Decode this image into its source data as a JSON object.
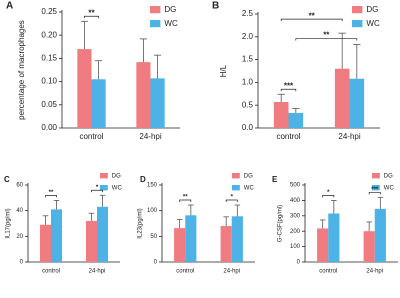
{
  "chart_data": [
    {
      "type": "bar",
      "label": "A",
      "y_label": "percentage of macrophages",
      "categories": [
        "control",
        "24-hpi"
      ],
      "series": [
        {
          "name": "DG",
          "color": "#f07c82",
          "values": [
            0.17,
            0.142
          ],
          "errors": [
            0.06,
            0.05
          ]
        },
        {
          "name": "WC",
          "color": "#4db3e6",
          "values": [
            0.105,
            0.107
          ],
          "errors": [
            0.04,
            0.05
          ]
        }
      ],
      "ylim": [
        0,
        0.25
      ],
      "yticks": [
        {
          "value": 0,
          "label": "0.00"
        },
        {
          "value": 0.05,
          "label": "0.05"
        },
        {
          "value": 0.1,
          "label": "0.10"
        },
        {
          "value": 0.15,
          "label": "0.15"
        },
        {
          "value": 0.2,
          "label": "0.20"
        },
        {
          "value": 0.25,
          "label": "0.25"
        }
      ],
      "annotations": [
        {
          "text": "**",
          "category": 0
        }
      ]
    },
    {
      "type": "bar",
      "label": "B",
      "y_label": "H/L",
      "categories": [
        "control",
        "24-hpi"
      ],
      "series": [
        {
          "name": "DG",
          "color": "#f07c82",
          "values": [
            0.57,
            1.3
          ],
          "errors": [
            0.17,
            0.78
          ]
        },
        {
          "name": "WC",
          "color": "#4db3e6",
          "values": [
            0.33,
            1.08
          ],
          "errors": [
            0.1,
            0.75
          ]
        }
      ],
      "ylim": [
        0,
        2.5
      ],
      "yticks": [
        {
          "value": 0,
          "label": "0.0"
        },
        {
          "value": 0.5,
          "label": "0.5"
        },
        {
          "value": 1,
          "label": "1.0"
        },
        {
          "value": 1.5,
          "label": "1.5"
        },
        {
          "value": 2,
          "label": "2.0"
        },
        {
          "value": 2.5,
          "label": "2.5"
        }
      ],
      "annotations": [
        {
          "text": "***",
          "category": 0
        },
        {
          "text": "**",
          "series": 0
        },
        {
          "text": "**",
          "series": 1
        }
      ]
    },
    {
      "type": "bar",
      "label": "C",
      "y_label": "IL17(pg/ml)",
      "categories": [
        "control",
        "24-hpi"
      ],
      "series": [
        {
          "name": "DG",
          "color": "#f07c82",
          "values": [
            29,
            32
          ],
          "errors": [
            7,
            6
          ]
        },
        {
          "name": "WC",
          "color": "#4db3e6",
          "values": [
            41,
            43
          ],
          "errors": [
            7,
            9
          ]
        }
      ],
      "ylim": [
        0,
        60
      ],
      "yticks": [
        0,
        20,
        40,
        60
      ],
      "annotations": [
        {
          "text": "**",
          "category": 0
        },
        {
          "text": "*",
          "category": 1
        }
      ]
    },
    {
      "type": "bar",
      "label": "D",
      "y_label": "IL23(pg/ml)",
      "categories": [
        "control",
        "24-hpi"
      ],
      "series": [
        {
          "name": "DG",
          "color": "#f07c82",
          "values": [
            66,
            70
          ],
          "errors": [
            17,
            18
          ]
        },
        {
          "name": "WC",
          "color": "#4db3e6",
          "values": [
            91,
            89
          ],
          "errors": [
            20,
            22
          ]
        }
      ],
      "ylim": [
        0,
        150
      ],
      "yticks": [
        0,
        50,
        100,
        150
      ],
      "annotations": [
        {
          "text": "**",
          "category": 0
        },
        {
          "text": "*",
          "category": 1
        }
      ]
    },
    {
      "type": "bar",
      "label": "E",
      "y_label": "G-CSF(pg/ml)",
      "categories": [
        "control",
        "24-hpi"
      ],
      "series": [
        {
          "name": "DG",
          "color": "#f07c82",
          "values": [
            218,
            200
          ],
          "errors": [
            55,
            60
          ]
        },
        {
          "name": "WC",
          "color": "#4db3e6",
          "values": [
            315,
            345
          ],
          "errors": [
            85,
            75
          ]
        }
      ],
      "ylim": [
        0,
        500
      ],
      "yticks": [
        0,
        100,
        200,
        300,
        400,
        500
      ],
      "annotations": [
        {
          "text": "*",
          "category": 0
        },
        {
          "text": "***",
          "category": 1
        }
      ]
    }
  ]
}
